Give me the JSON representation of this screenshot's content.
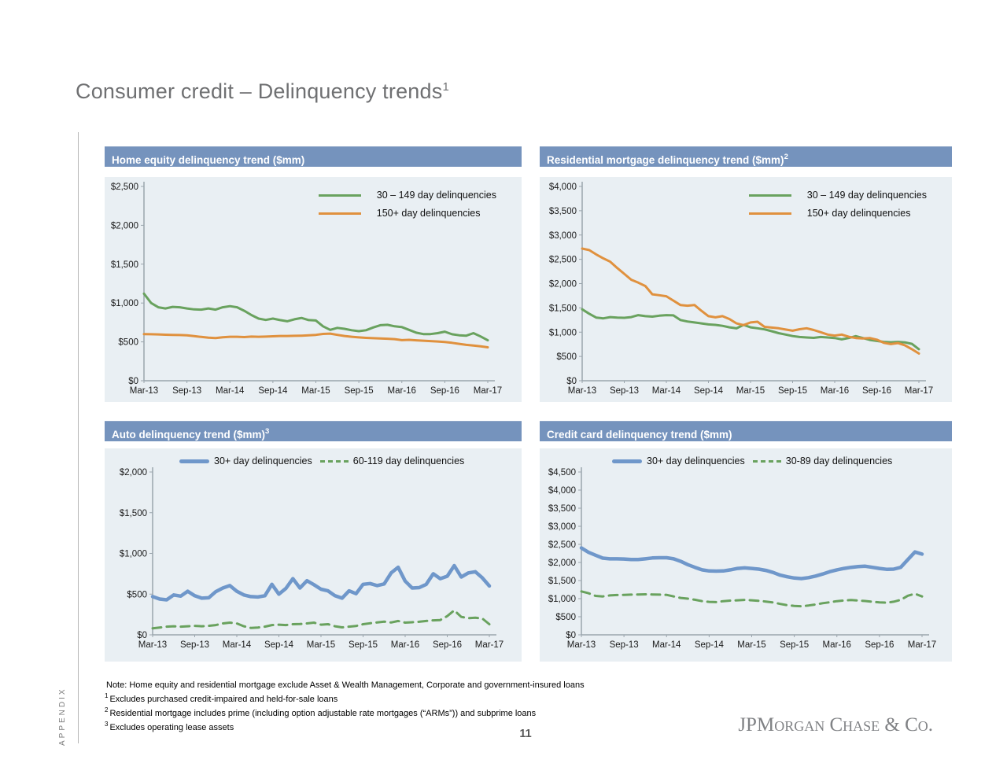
{
  "slide": {
    "title": "Consumer credit – Delinquency trends",
    "title_superscript": "1",
    "page_number": "11",
    "vertical_label": "APPENDIX",
    "logo_text": "JPMorgan Chase & Co.",
    "footnotes": [
      {
        "sup": "",
        "text": "Note: Home equity and residential mortgage exclude Asset & Wealth Management, Corporate and government-insured loans"
      },
      {
        "sup": "1",
        "text": "Excludes purchased credit-impaired and held-for-sale loans"
      },
      {
        "sup": "2",
        "text": "Residential mortgage includes prime (including option adjustable rate mortgages (“ARMs”)) and subprime loans"
      },
      {
        "sup": "3",
        "text": "Excludes operating lease assets"
      }
    ]
  },
  "colors": {
    "header_bar": "#7593bd",
    "plot_bg": "#e9eff3",
    "axis": "#9aa5ad",
    "green": "#69a25e",
    "orange": "#e0913e",
    "blue": "#6f97ca",
    "title_gray": "#6f7072",
    "logo_gray": "#808285"
  },
  "chart_data": [
    {
      "id": "home-equity",
      "type": "line",
      "title": "Home equity delinquency trend ($mm)",
      "title_superscript": "",
      "ylabel": "",
      "xlabel": "",
      "ylim": [
        0,
        2500
      ],
      "ytick_step": 500,
      "ytick_labels": [
        "$0",
        "$500",
        "$1,000",
        "$1,500",
        "$2,000",
        "$2,500"
      ],
      "x_tick_labels": [
        "Mar-13",
        "Sep-13",
        "Mar-14",
        "Sep-14",
        "Mar-15",
        "Sep-15",
        "Mar-16",
        "Sep-16",
        "Mar-17"
      ],
      "x_labels_every": 6,
      "n_points": 49,
      "grid": false,
      "legend_style": "stacked",
      "legend_position": "top-right",
      "series": [
        {
          "name": "30 – 149 day delinquencies",
          "color_key": "green",
          "dash": false,
          "width": 3,
          "values": [
            1120,
            1000,
            945,
            930,
            950,
            945,
            930,
            918,
            915,
            930,
            915,
            945,
            960,
            945,
            900,
            845,
            800,
            782,
            800,
            780,
            765,
            790,
            808,
            780,
            775,
            700,
            655,
            680,
            668,
            650,
            638,
            650,
            685,
            715,
            720,
            700,
            690,
            655,
            618,
            600,
            600,
            612,
            632,
            598,
            585,
            580,
            612,
            570,
            520
          ]
        },
        {
          "name": "150+ day delinquencies",
          "color_key": "orange",
          "dash": false,
          "width": 3,
          "values": [
            600,
            598,
            596,
            592,
            590,
            588,
            584,
            574,
            564,
            554,
            550,
            560,
            566,
            566,
            562,
            568,
            566,
            568,
            572,
            576,
            576,
            578,
            580,
            584,
            590,
            602,
            606,
            590,
            576,
            566,
            558,
            552,
            548,
            545,
            540,
            535,
            522,
            526,
            520,
            515,
            510,
            505,
            498,
            488,
            475,
            462,
            452,
            442,
            430
          ]
        }
      ]
    },
    {
      "id": "residential-mortgage",
      "type": "line",
      "title": "Residential mortgage delinquency trend ($mm)",
      "title_superscript": "2",
      "ylabel": "",
      "xlabel": "",
      "ylim": [
        0,
        4000
      ],
      "ytick_step": 500,
      "ytick_labels": [
        "$0",
        "$500",
        "$1,000",
        "$1,500",
        "$2,000",
        "$2,500",
        "$3,000",
        "$3,500",
        "$4,000"
      ],
      "x_tick_labels": [
        "Mar-13",
        "Sep-13",
        "Mar-14",
        "Sep-14",
        "Mar-15",
        "Sep-15",
        "Mar-16",
        "Sep-16",
        "Mar-17"
      ],
      "x_labels_every": 6,
      "n_points": 49,
      "grid": false,
      "legend_style": "stacked",
      "legend_position": "top-right",
      "series": [
        {
          "name": "30 – 149 day delinquencies",
          "color_key": "green",
          "dash": false,
          "width": 3,
          "values": [
            1470,
            1380,
            1300,
            1285,
            1310,
            1300,
            1295,
            1310,
            1350,
            1330,
            1320,
            1340,
            1350,
            1345,
            1250,
            1220,
            1200,
            1180,
            1160,
            1150,
            1130,
            1100,
            1078,
            1150,
            1100,
            1080,
            1058,
            1020,
            980,
            950,
            920,
            900,
            890,
            882,
            900,
            890,
            880,
            852,
            880,
            918,
            880,
            840,
            820,
            800,
            792,
            800,
            790,
            760,
            650
          ]
        },
        {
          "name": "150+ day delinquencies",
          "color_key": "orange",
          "dash": false,
          "width": 3,
          "values": [
            2720,
            2690,
            2600,
            2520,
            2450,
            2320,
            2200,
            2080,
            2020,
            1950,
            1780,
            1760,
            1740,
            1650,
            1560,
            1545,
            1560,
            1440,
            1330,
            1305,
            1330,
            1270,
            1180,
            1145,
            1200,
            1215,
            1110,
            1095,
            1080,
            1055,
            1030,
            1060,
            1080,
            1045,
            1000,
            950,
            930,
            950,
            905,
            880,
            870,
            880,
            845,
            780,
            755,
            775,
            730,
            650,
            560
          ]
        }
      ]
    },
    {
      "id": "auto",
      "type": "line",
      "title": "Auto delinquency trend ($mm)",
      "title_superscript": "3",
      "ylabel": "",
      "xlabel": "",
      "ylim": [
        0,
        2000
      ],
      "ytick_step": 500,
      "ytick_labels": [
        "$0",
        "$500",
        "$1,000",
        "$1,500",
        "$2,000"
      ],
      "x_tick_labels": [
        "Mar-13",
        "Sep-13",
        "Mar-14",
        "Sep-14",
        "Mar-15",
        "Sep-15",
        "Mar-16",
        "Sep-16",
        "Mar-17"
      ],
      "x_labels_every": 6,
      "n_points": 49,
      "grid": false,
      "legend_style": "inline",
      "legend_position": "top",
      "series": [
        {
          "name": "30+ day delinquencies",
          "color_key": "blue",
          "dash": false,
          "width": 4.5,
          "values": [
            470,
            440,
            430,
            490,
            475,
            535,
            480,
            450,
            455,
            530,
            575,
            605,
            535,
            490,
            470,
            465,
            480,
            620,
            500,
            570,
            690,
            575,
            665,
            615,
            560,
            540,
            480,
            450,
            540,
            505,
            620,
            630,
            605,
            625,
            760,
            830,
            660,
            575,
            580,
            620,
            750,
            690,
            720,
            850,
            710,
            760,
            775,
            700,
            600
          ]
        },
        {
          "name": "60-119 day delinquencies",
          "color_key": "green",
          "dash": true,
          "width": 3,
          "values": [
            80,
            90,
            100,
            105,
            100,
            105,
            110,
            105,
            110,
            120,
            140,
            150,
            140,
            105,
            85,
            90,
            100,
            120,
            125,
            120,
            130,
            132,
            140,
            150,
            125,
            130,
            105,
            92,
            100,
            108,
            130,
            142,
            152,
            162,
            152,
            170,
            150,
            155,
            160,
            170,
            178,
            182,
            230,
            300,
            220,
            205,
            210,
            200,
            130
          ]
        }
      ]
    },
    {
      "id": "credit-card",
      "type": "line",
      "title": "Credit card delinquency trend ($mm)",
      "title_superscript": "",
      "ylabel": "",
      "xlabel": "",
      "ylim": [
        0,
        4500
      ],
      "ytick_step": 500,
      "ytick_labels": [
        "$0",
        "$500",
        "$1,000",
        "$1,500",
        "$2,000",
        "$2,500",
        "$3,000",
        "$3,500",
        "$4,000",
        "$4,500"
      ],
      "x_tick_labels": [
        "Mar-13",
        "Sep-13",
        "Mar-14",
        "Sep-14",
        "Mar-15",
        "Sep-15",
        "Mar-16",
        "Sep-16",
        "Mar-17"
      ],
      "x_labels_every": 6,
      "n_points": 49,
      "grid": false,
      "legend_style": "inline",
      "legend_position": "top",
      "series": [
        {
          "name": "30+ day delinquencies",
          "color_key": "blue",
          "dash": false,
          "width": 4.5,
          "values": [
            2400,
            2280,
            2200,
            2120,
            2100,
            2100,
            2095,
            2080,
            2080,
            2100,
            2125,
            2130,
            2130,
            2100,
            2030,
            1940,
            1865,
            1795,
            1765,
            1760,
            1765,
            1795,
            1835,
            1850,
            1835,
            1815,
            1780,
            1725,
            1650,
            1605,
            1570,
            1555,
            1580,
            1625,
            1680,
            1745,
            1795,
            1835,
            1865,
            1885,
            1895,
            1865,
            1835,
            1810,
            1815,
            1865,
            2080,
            2290,
            2230
          ]
        },
        {
          "name": "30-89 day delinquencies",
          "color_key": "green",
          "dash": true,
          "width": 3,
          "values": [
            1200,
            1150,
            1075,
            1060,
            1090,
            1100,
            1105,
            1110,
            1115,
            1120,
            1115,
            1110,
            1105,
            1060,
            1020,
            1000,
            970,
            930,
            910,
            905,
            930,
            945,
            955,
            965,
            955,
            940,
            920,
            895,
            855,
            820,
            800,
            790,
            810,
            840,
            875,
            900,
            930,
            950,
            960,
            950,
            935,
            915,
            895,
            890,
            915,
            965,
            1080,
            1135,
            1060
          ]
        }
      ]
    }
  ]
}
